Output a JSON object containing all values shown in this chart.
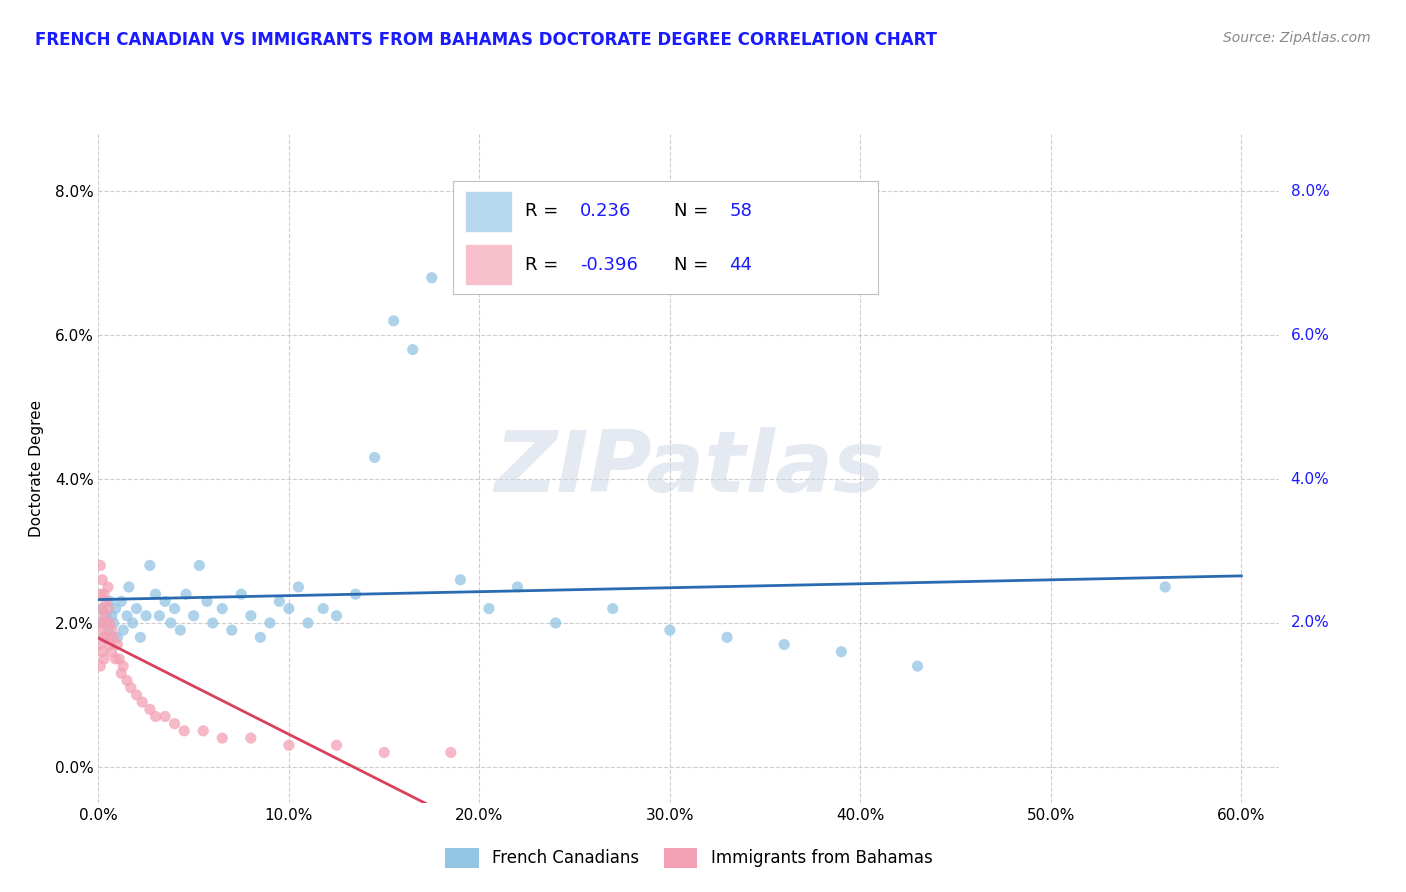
{
  "title": "FRENCH CANADIAN VS IMMIGRANTS FROM BAHAMAS DOCTORATE DEGREE CORRELATION CHART",
  "source": "Source: ZipAtlas.com",
  "ylabel": "Doctorate Degree",
  "x_ticklabels": [
    "0.0%",
    "10.0%",
    "20.0%",
    "30.0%",
    "40.0%",
    "50.0%",
    "60.0%"
  ],
  "y_ticklabels_left": [
    "0.0%",
    "2.0%",
    "4.0%",
    "6.0%",
    "8.0%"
  ],
  "y_ticklabels_right": [
    "8.0%",
    "6.0%",
    "4.0%",
    "2.0%"
  ],
  "x_ticks": [
    0.0,
    0.1,
    0.2,
    0.3,
    0.4,
    0.5,
    0.6
  ],
  "y_ticks": [
    0.0,
    0.02,
    0.04,
    0.06,
    0.08
  ],
  "y_ticks_right": [
    0.08,
    0.06,
    0.04,
    0.02
  ],
  "xlim": [
    0.0,
    0.62
  ],
  "ylim": [
    -0.005,
    0.088
  ],
  "french_canadian_x": [
    0.001,
    0.002,
    0.003,
    0.004,
    0.005,
    0.006,
    0.007,
    0.008,
    0.009,
    0.01,
    0.012,
    0.013,
    0.015,
    0.016,
    0.018,
    0.02,
    0.022,
    0.025,
    0.027,
    0.03,
    0.032,
    0.035,
    0.038,
    0.04,
    0.043,
    0.046,
    0.05,
    0.053,
    0.057,
    0.06,
    0.065,
    0.07,
    0.075,
    0.08,
    0.085,
    0.09,
    0.095,
    0.1,
    0.105,
    0.11,
    0.118,
    0.125,
    0.135,
    0.145,
    0.155,
    0.165,
    0.175,
    0.19,
    0.205,
    0.22,
    0.24,
    0.27,
    0.3,
    0.33,
    0.36,
    0.39,
    0.43,
    0.56
  ],
  "french_canadian_y": [
    0.02,
    0.022,
    0.018,
    0.021,
    0.019,
    0.023,
    0.021,
    0.02,
    0.022,
    0.018,
    0.023,
    0.019,
    0.021,
    0.025,
    0.02,
    0.022,
    0.018,
    0.021,
    0.028,
    0.024,
    0.021,
    0.023,
    0.02,
    0.022,
    0.019,
    0.024,
    0.021,
    0.028,
    0.023,
    0.02,
    0.022,
    0.019,
    0.024,
    0.021,
    0.018,
    0.02,
    0.023,
    0.022,
    0.025,
    0.02,
    0.022,
    0.021,
    0.024,
    0.043,
    0.062,
    0.058,
    0.068,
    0.026,
    0.022,
    0.025,
    0.02,
    0.022,
    0.019,
    0.018,
    0.017,
    0.016,
    0.014,
    0.025
  ],
  "bahamas_x": [
    0.001,
    0.001,
    0.001,
    0.001,
    0.001,
    0.002,
    0.002,
    0.002,
    0.002,
    0.003,
    0.003,
    0.003,
    0.003,
    0.004,
    0.004,
    0.005,
    0.005,
    0.005,
    0.006,
    0.006,
    0.007,
    0.007,
    0.008,
    0.009,
    0.01,
    0.011,
    0.012,
    0.013,
    0.015,
    0.017,
    0.02,
    0.023,
    0.027,
    0.03,
    0.035,
    0.04,
    0.045,
    0.055,
    0.065,
    0.08,
    0.1,
    0.125,
    0.15,
    0.185
  ],
  "bahamas_y": [
    0.028,
    0.024,
    0.02,
    0.017,
    0.014,
    0.026,
    0.022,
    0.019,
    0.016,
    0.024,
    0.021,
    0.018,
    0.015,
    0.023,
    0.02,
    0.025,
    0.022,
    0.018,
    0.02,
    0.017,
    0.019,
    0.016,
    0.018,
    0.015,
    0.017,
    0.015,
    0.013,
    0.014,
    0.012,
    0.011,
    0.01,
    0.009,
    0.008,
    0.007,
    0.007,
    0.006,
    0.005,
    0.005,
    0.004,
    0.004,
    0.003,
    0.003,
    0.002,
    0.002
  ],
  "dot_color_blue": "#92c4e4",
  "dot_color_pink": "#f4a0b4",
  "line_color_blue": "#2a6ab0",
  "line_color_pink": "#d84060",
  "legend_box_blue": "#b8d8f0",
  "legend_box_pink": "#f8c0cc",
  "watermark_text": "ZIPatlas",
  "watermark_color": "#d0d8e8",
  "bg_color": "#ffffff",
  "grid_color": "#c8c8c8",
  "title_color": "#1a1aff",
  "source_color": "#888888",
  "legend_text_color": "#1a1aff",
  "label_color": "#1a1aff"
}
